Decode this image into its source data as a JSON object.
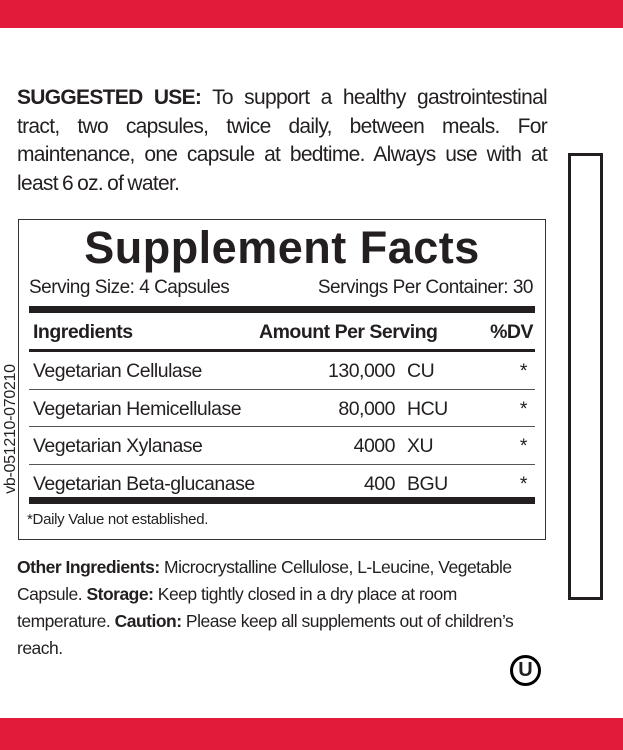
{
  "colors": {
    "accent": "#e31b3a",
    "text": "#231f20"
  },
  "suggested_use": {
    "label": "SUGGESTED USE:",
    "text": " To support a healthy gastrointestinal tract, two capsules, twice daily, between meals. For maintenance, one capsule at bedtime. Always use with at least 6 oz. of water."
  },
  "facts": {
    "title": "Supplement Facts",
    "serving_size": "Serving Size: 4 Capsules",
    "servings_per_container": "Servings Per Container: 30",
    "headers": {
      "ingredient": "Ingredients",
      "amount": "Amount Per Serving",
      "dv": "%DV"
    },
    "rows": [
      {
        "name": "Vegetarian Cellulase",
        "amount": "130,000",
        "unit": "CU",
        "dv": "*"
      },
      {
        "name": "Vegetarian Hemicellulase",
        "amount": "80,000",
        "unit": "HCU",
        "dv": "*"
      },
      {
        "name": "Vegetarian Xylanase",
        "amount": "4000",
        "unit": "XU",
        "dv": "*"
      },
      {
        "name": "Vegetarian Beta-glucanase",
        "amount": "400",
        "unit": "BGU",
        "dv": "*"
      }
    ],
    "footnote": "*Daily Value not established."
  },
  "other": {
    "label1": "Other Ingredients:",
    "text1": " Microcrystalline Cellulose, L-Leucine, Vegetable Capsule.  ",
    "label2": "Storage:",
    "text2": " Keep tightly closed in a dry place at room temperature. ",
    "label3": "Caution:",
    "text3": " Please keep all supplements out of children’s reach."
  },
  "code": "vb-051210-070210",
  "kosher_mark": "U",
  "icons": {
    "kosher": "ou-kosher-symbol"
  }
}
